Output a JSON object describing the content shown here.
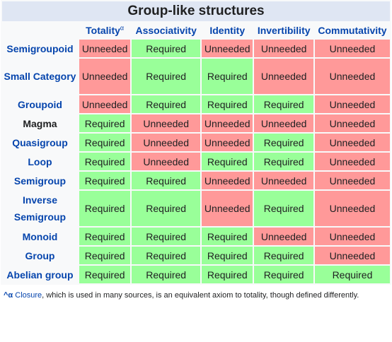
{
  "title": "Group-like structures",
  "columns": [
    {
      "label": "Totality",
      "sup": "α"
    },
    {
      "label": "Associativity",
      "sup": ""
    },
    {
      "label": "Identity",
      "sup": ""
    },
    {
      "label": "Invertibility",
      "sup": ""
    },
    {
      "label": "Commutativity",
      "sup": ""
    }
  ],
  "rows": [
    {
      "name": "Semigroupoid",
      "link": true,
      "cells": [
        "Unneeded",
        "Required",
        "Unneeded",
        "Unneeded",
        "Unneeded"
      ]
    },
    {
      "name": "Small Category",
      "link": true,
      "cells": [
        "Unneeded",
        "Required",
        "Required",
        "Unneeded",
        "Unneeded"
      ]
    },
    {
      "name": "Groupoid",
      "link": true,
      "cells": [
        "Unneeded",
        "Required",
        "Required",
        "Required",
        "Unneeded"
      ]
    },
    {
      "name": "Magma",
      "link": false,
      "cells": [
        "Required",
        "Unneeded",
        "Unneeded",
        "Unneeded",
        "Unneeded"
      ]
    },
    {
      "name": "Quasigroup",
      "link": true,
      "cells": [
        "Required",
        "Unneeded",
        "Unneeded",
        "Required",
        "Unneeded"
      ]
    },
    {
      "name": "Loop",
      "link": true,
      "cells": [
        "Required",
        "Unneeded",
        "Required",
        "Required",
        "Unneeded"
      ]
    },
    {
      "name": "Semigroup",
      "link": true,
      "cells": [
        "Required",
        "Required",
        "Unneeded",
        "Unneeded",
        "Unneeded"
      ]
    },
    {
      "name": "Inverse Semigroup",
      "link": true,
      "cells": [
        "Required",
        "Required",
        "Unneeded",
        "Required",
        "Unneeded"
      ]
    },
    {
      "name": "Monoid",
      "link": true,
      "cells": [
        "Required",
        "Required",
        "Required",
        "Unneeded",
        "Unneeded"
      ]
    },
    {
      "name": "Group",
      "link": true,
      "cells": [
        "Required",
        "Required",
        "Required",
        "Required",
        "Unneeded"
      ]
    },
    {
      "name": "Abelian group",
      "link": true,
      "cells": [
        "Required",
        "Required",
        "Required",
        "Required",
        "Required"
      ]
    }
  ],
  "footnote": {
    "marker": "^α",
    "link_text": "Closure",
    "text": ", which is used in many sources, is an equivalent axiom to totality, though defined differently."
  },
  "colors": {
    "required": "#99ff99",
    "unneeded": "#ff9999",
    "title_bg": "#dfe6f3",
    "link": "#0645ad"
  }
}
